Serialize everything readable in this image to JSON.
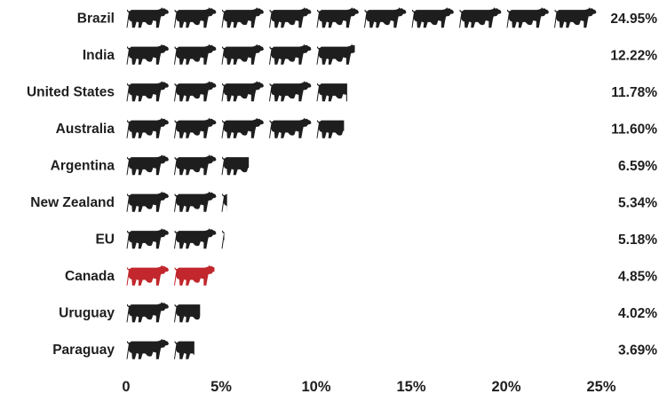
{
  "chart_data": {
    "type": "bar",
    "categories": [
      "Brazil",
      "India",
      "United States",
      "Australia",
      "Argentina",
      "New Zealand",
      "EU",
      "Canada",
      "Uruguay",
      "Paraguay"
    ],
    "values": [
      24.95,
      12.22,
      11.78,
      11.6,
      6.59,
      5.34,
      5.18,
      4.85,
      4.02,
      3.69
    ],
    "value_labels": [
      "24.95%",
      "12.22%",
      "11.78%",
      "11.60%",
      "6.59%",
      "5.34%",
      "5.18%",
      "4.85%",
      "4.02%",
      "3.69%"
    ],
    "xticks": [
      "0",
      "5%",
      "10%",
      "15%",
      "20%",
      "25%"
    ],
    "xlim": [
      0,
      25
    ],
    "unit_per_icon": 2.5,
    "bar_color": "#1e1e1e",
    "highlight_category": "Canada",
    "highlight_color": "#c1272d",
    "icon": "cow-icon",
    "grid": false,
    "title": "",
    "xlabel": "",
    "ylabel": ""
  }
}
